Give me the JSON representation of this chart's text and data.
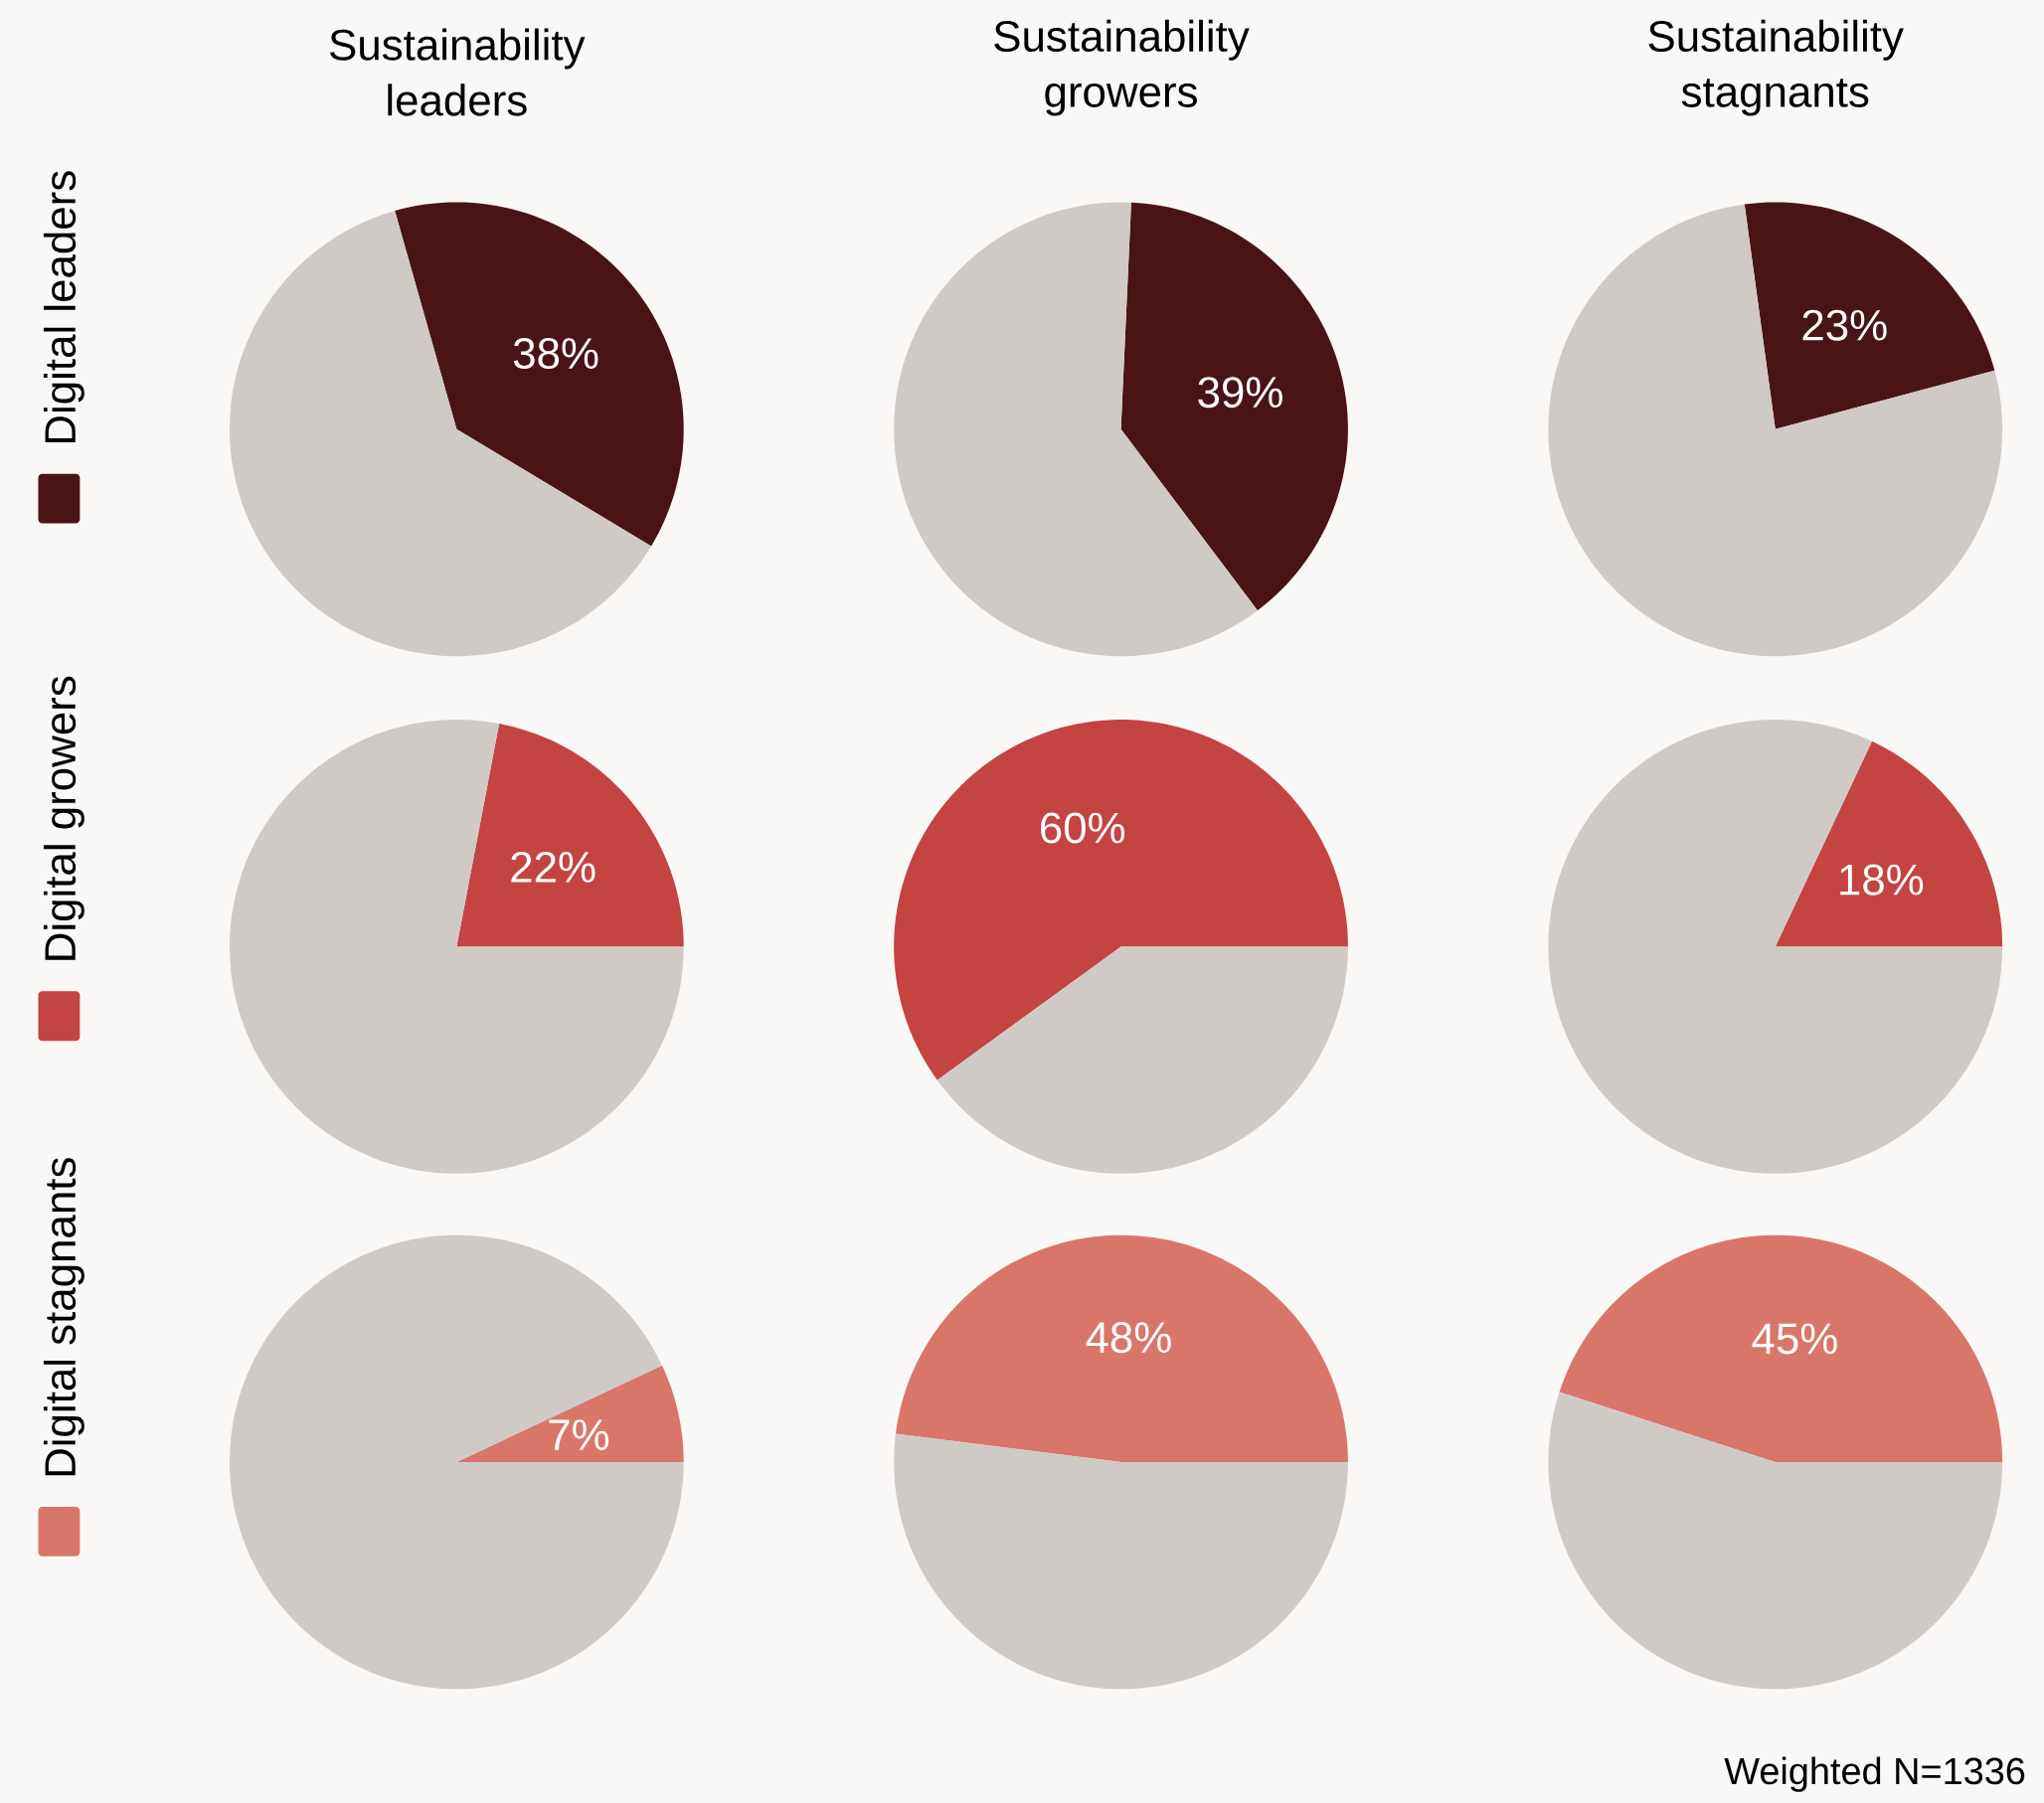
{
  "chart_data": [
    {
      "type": "pie",
      "title": "Sustainability leaders",
      "ylabel": "Digital leaders",
      "categories": [
        null,
        null
      ],
      "values": [
        38,
        62
      ],
      "colors": [
        "#4a1416",
        "#d0cac7"
      ],
      "value_labels": [
        "38%",
        null
      ]
    },
    {
      "type": "pie",
      "title": "Sustainability growers",
      "categories": [
        null,
        null
      ],
      "values": [
        39,
        61
      ],
      "colors": [
        "#4a1416",
        "#d0cac7"
      ],
      "value_labels": [
        "39%",
        null
      ]
    },
    {
      "type": "pie",
      "title": "Sustainability stagnants",
      "categories": [
        null,
        null
      ],
      "values": [
        23,
        77
      ],
      "colors": [
        "#4a1416",
        "#d0cac7"
      ],
      "value_labels": [
        "23%",
        null
      ]
    },
    {
      "type": "pie",
      "ylabel": "Digital growers",
      "categories": [
        null,
        null
      ],
      "values": [
        22,
        78
      ],
      "colors": [
        "#c44442",
        "#d0cac7"
      ],
      "value_labels": [
        "22%",
        null
      ]
    },
    {
      "type": "pie",
      "categories": [
        null,
        null
      ],
      "values": [
        60,
        40
      ],
      "colors": [
        "#c44442",
        "#d0cac7"
      ],
      "value_labels": [
        "60%",
        null
      ]
    },
    {
      "type": "pie",
      "categories": [
        null,
        null
      ],
      "values": [
        18,
        82
      ],
      "colors": [
        "#c44442",
        "#d0cac7"
      ],
      "value_labels": [
        "18%",
        null
      ]
    },
    {
      "type": "pie",
      "ylabel": "Digital stagnants",
      "categories": [
        null,
        null
      ],
      "values": [
        7,
        93
      ],
      "colors": [
        "#d9766a",
        "#d0cac7"
      ],
      "value_labels": [
        "7%",
        null
      ]
    },
    {
      "type": "pie",
      "categories": [
        null,
        null
      ],
      "values": [
        48,
        52
      ],
      "colors": [
        "#d9766a",
        "#d0cac7"
      ],
      "value_labels": [
        "48%",
        null
      ]
    },
    {
      "type": "pie",
      "categories": [
        null,
        null
      ],
      "values": [
        45,
        55
      ],
      "colors": [
        "#d9766a",
        "#d0cac7"
      ],
      "value_labels": [
        "45%",
        null
      ],
      "annotations": [
        "Weighted N=1336"
      ]
    }
  ]
}
